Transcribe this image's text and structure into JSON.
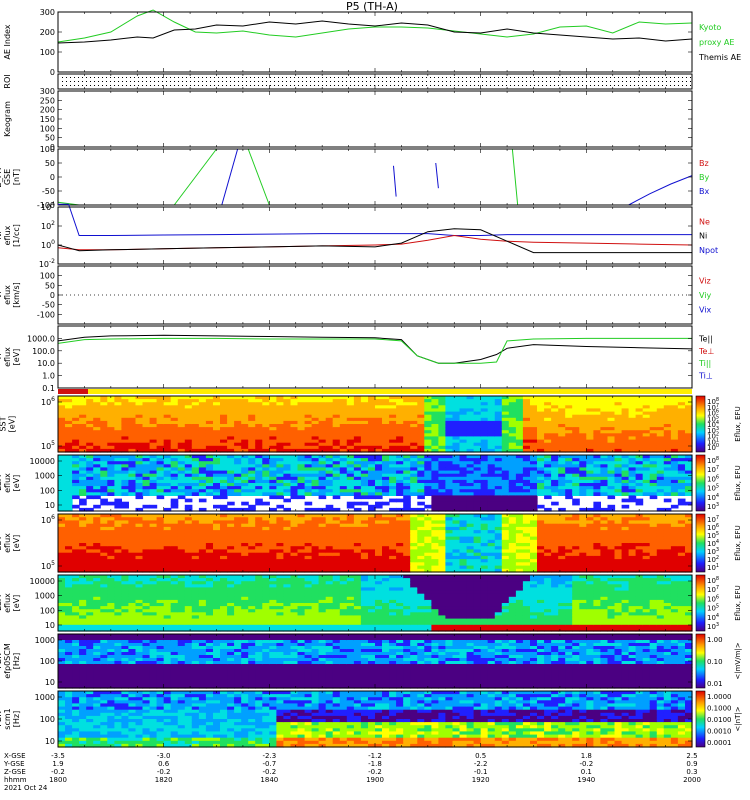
{
  "title": "P5 (TH-A)",
  "footer": {
    "row_labels": [
      "X-GSE",
      "Y-GSE",
      "Z-GSE",
      "hhmm"
    ],
    "date": "2021 Oct 24",
    "columns": [
      [
        "-3.5",
        "1.9",
        "-0.2",
        "1800"
      ],
      [
        "-3.0",
        "0.6",
        "-0.2",
        "1820"
      ],
      [
        "-2.3",
        "-0.7",
        "-0.2",
        "1840"
      ],
      [
        "-1.2",
        "-1.8",
        "-0.2",
        "1900"
      ],
      [
        "0.5",
        "-2.2",
        "-0.1",
        "1920"
      ],
      [
        "1.8",
        "-0.2",
        "0.1",
        "1940"
      ],
      [
        "2.5",
        "0.9",
        "0.3",
        "2000"
      ]
    ]
  },
  "colors": {
    "black": "#000000",
    "green": "#22cc22",
    "blue": "#1010d0",
    "red": "#d01010"
  },
  "chart_data": [
    {
      "type": "line",
      "ylabel": "AE Index",
      "ylim": [
        0,
        300
      ],
      "yticks": [
        "0",
        "100",
        "200",
        "300"
      ],
      "legend": [
        {
          "text": "Kyoto",
          "color": "#22cc22"
        },
        {
          "text": "proxy AE",
          "color": "#22cc22"
        },
        {
          "text": "Themis AE",
          "color": "#000000"
        }
      ],
      "x": [
        1800,
        1805,
        1810,
        1815,
        1818,
        1822,
        1826,
        1830,
        1835,
        1840,
        1845,
        1850,
        1855,
        1900,
        1905,
        1910,
        1915,
        1920,
        1925,
        1930,
        1935,
        1940,
        1945,
        1950,
        1955,
        2000
      ],
      "series": [
        {
          "name": "Kyoto proxy AE",
          "values": [
            150,
            170,
            200,
            280,
            310,
            250,
            200,
            195,
            205,
            185,
            175,
            195,
            215,
            225,
            225,
            220,
            205,
            190,
            175,
            190,
            225,
            230,
            195,
            250,
            240,
            245
          ]
        },
        {
          "name": "Themis AE",
          "values": [
            145,
            150,
            160,
            175,
            170,
            210,
            215,
            235,
            230,
            250,
            240,
            255,
            240,
            230,
            245,
            235,
            200,
            195,
            215,
            195,
            185,
            175,
            165,
            170,
            155,
            165
          ]
        }
      ]
    },
    {
      "type": "scatter",
      "ylabel": "ROI",
      "ylim": [
        0,
        1
      ]
    },
    {
      "type": "line",
      "ylabel": "Keogram",
      "ylim": [
        0,
        300
      ],
      "yticks": [
        "0",
        "50",
        "100",
        "150",
        "200",
        "250",
        "300"
      ]
    },
    {
      "type": "line",
      "ylabel": "B_FIT [nT]",
      "ylabel_lines": [
        "B_FIT",
        "GSE",
        "[nT]"
      ],
      "ylim": [
        -100,
        100
      ],
      "yticks": [
        "-100",
        "-50",
        "0",
        "50",
        "100"
      ],
      "legend": [
        {
          "text": "Bz",
          "color": "#d01010"
        },
        {
          "text": "By",
          "color": "#22cc22"
        },
        {
          "text": "Bx",
          "color": "#1010d0"
        }
      ],
      "segments": [
        {
          "color": "#22cc22",
          "x": [
            1800,
            1804
          ],
          "y": [
            -90,
            -115
          ]
        },
        {
          "color": "#22cc22",
          "x": [
            1822,
            1830
          ],
          "y": [
            -110,
            110
          ]
        },
        {
          "color": "#1010d0",
          "x": [
            1831,
            1834
          ],
          "y": [
            -110,
            110
          ]
        },
        {
          "color": "#22cc22",
          "x": [
            1836,
            1840
          ],
          "y": [
            110,
            -110
          ]
        },
        {
          "color": "#1010d0",
          "x": [
            1903.5,
            1904
          ],
          "y": [
            40,
            -70
          ]
        },
        {
          "color": "#1010d0",
          "x": [
            1911.5,
            1912
          ],
          "y": [
            50,
            -40
          ]
        },
        {
          "color": "#22cc22",
          "x": [
            1926,
            1927
          ],
          "y": [
            110,
            -110
          ]
        },
        {
          "color": "#1010d0",
          "x": [
            1948,
            1952,
            1956,
            2000
          ],
          "y": [
            -110,
            -60,
            -25,
            5
          ]
        }
      ]
    },
    {
      "type": "line",
      "ylabel": "Ni [1/cc]",
      "ylabel_lines": [
        "Ni",
        "eflux",
        "[1/cc]"
      ],
      "ylim": [
        -2,
        4
      ],
      "yscale": "log",
      "yticks": [
        "10^-2",
        "10^0",
        "10^2",
        "10^4"
      ],
      "legend": [
        {
          "text": "Ne",
          "color": "#d01010"
        },
        {
          "text": "Ni",
          "color": "#000000"
        },
        {
          "text": "Npot",
          "color": "#1010d0"
        }
      ],
      "x": [
        1800,
        1802,
        1804,
        1810,
        1820,
        1830,
        1840,
        1850,
        1900,
        1905,
        1910,
        1915,
        1920,
        1925,
        1930,
        1940,
        1950,
        2000
      ],
      "series": [
        {
          "name": "Npot",
          "values": [
            4.3,
            4.3,
            1.0,
            1.0,
            1.05,
            1.1,
            1.15,
            1.2,
            1.2,
            1.2,
            1.2,
            1.0,
            1.0,
            1.1,
            1.1,
            1.1,
            1.1,
            1.1
          ]
        },
        {
          "name": "Ne",
          "values": [
            -0.3,
            -0.4,
            -0.5,
            -0.5,
            -0.4,
            -0.3,
            -0.2,
            -0.1,
            0.0,
            0.1,
            0.5,
            1.0,
            0.6,
            0.4,
            0.3,
            0.2,
            0.1,
            0.0
          ]
        },
        {
          "name": "Ni",
          "values": [
            0.0,
            -0.3,
            -0.6,
            -0.5,
            -0.4,
            -0.3,
            -0.2,
            -0.1,
            -0.2,
            0.2,
            1.4,
            1.7,
            1.6,
            0.4,
            -0.8,
            -0.8,
            -0.8,
            -0.8
          ]
        }
      ]
    },
    {
      "type": "line",
      "ylabel": "Vi [km/s]",
      "ylabel_lines": [
        "Vi",
        "eflux",
        "[km/s]"
      ],
      "ylim": [
        -150,
        150
      ],
      "yticks": [
        "-100",
        "-50",
        "0",
        "50",
        "100"
      ],
      "legend": [
        {
          "text": "Viz",
          "color": "#d01010"
        },
        {
          "text": "Viy",
          "color": "#22cc22"
        },
        {
          "text": "Vix",
          "color": "#1010d0"
        }
      ]
    },
    {
      "type": "line",
      "ylabel": "Ti [eV]",
      "ylabel_lines": [
        "Ti",
        "eflux",
        "[eV]"
      ],
      "ylim": [
        -1,
        4
      ],
      "yscale": "log",
      "yticks": [
        "0.1",
        "1.0",
        "10.0",
        "100.0",
        "1000.0"
      ],
      "legend": [
        {
          "text": "Te||",
          "color": "#000000"
        },
        {
          "text": "Te⊥",
          "color": "#d01010"
        },
        {
          "text": "Ti||",
          "color": "#22cc22"
        },
        {
          "text": "Ti⊥",
          "color": "#1010d0"
        }
      ],
      "x": [
        1800,
        1805,
        1810,
        1820,
        1830,
        1840,
        1850,
        1900,
        1905,
        1908,
        1912,
        1915,
        1920,
        1923,
        1925,
        1930,
        1940,
        1950,
        2000
      ],
      "series": [
        {
          "name": "Te||",
          "values": [
            2.8,
            3.1,
            3.2,
            3.25,
            3.2,
            3.15,
            3.1,
            3.05,
            2.9,
            1.6,
            1.0,
            1.0,
            1.3,
            1.7,
            2.2,
            2.5,
            2.35,
            2.25,
            2.15
          ]
        },
        {
          "name": "Ti||",
          "values": [
            2.6,
            2.9,
            2.95,
            3.0,
            3.0,
            2.95,
            2.95,
            2.95,
            2.8,
            1.6,
            1.0,
            1.0,
            1.0,
            1.1,
            2.8,
            2.95,
            3.0,
            3.0,
            3.0
          ]
        }
      ]
    },
    {
      "type": "heatmap",
      "ylabel": "SST [eV]",
      "ylabel_lines": [
        "SST",
        "[eV]"
      ],
      "yticks": [
        "10^5",
        "10^6"
      ],
      "colorbar_label": "Eflux, EFU",
      "colorbar_ticks": [
        "10^8",
        "10^7",
        "10^6",
        "10^5",
        "10^4",
        "10^3",
        "10^2",
        "10^1",
        "10^0"
      ]
    },
    {
      "type": "heatmap",
      "ylabel": "ESA [eV]",
      "ylabel_lines": [
        "ESA",
        "eflux",
        "[eV]"
      ],
      "yticks": [
        "10",
        "100",
        "1000",
        "10000"
      ],
      "colorbar_label": "Eflux, EFU",
      "colorbar_ticks": [
        "10^8",
        "10^7",
        "10^6",
        "10^5",
        "10^4",
        "10^3"
      ]
    },
    {
      "type": "heatmap",
      "ylabel": "SST [eV]",
      "ylabel_lines": [
        "SST",
        "eflux",
        "[eV]"
      ],
      "yticks": [
        "10^5",
        "10^6"
      ],
      "colorbar_label": "Eflux, EFU",
      "colorbar_ticks": [
        "10^7",
        "10^6",
        "10^5",
        "10^4",
        "10^3",
        "10^2",
        "10^1"
      ]
    },
    {
      "type": "heatmap",
      "ylabel": "ESA [eV]",
      "ylabel_lines": [
        "ESA",
        "eflux",
        "[eV]"
      ],
      "yticks": [
        "10",
        "100",
        "1000",
        "10000"
      ],
      "colorbar_label": "Eflux, EFU",
      "colorbar_ticks": [
        "10^8",
        "10^7",
        "10^6",
        "10^5",
        "10^4",
        "10^3"
      ]
    },
    {
      "type": "heatmap",
      "ylabel": "FBK [Hz]",
      "ylabel_lines": [
        "FBK",
        "efp0SCM",
        "[Hz]"
      ],
      "yticks": [
        "10",
        "100",
        "1000"
      ],
      "colorbar_label": "<|mV/m|>",
      "colorbar_ticks": [
        "1.00",
        "0.10",
        "0.01"
      ]
    },
    {
      "type": "heatmap",
      "ylabel": "FBK [Hz]",
      "ylabel_lines": [
        "FBK",
        "scm1",
        "[Hz]"
      ],
      "yticks": [
        "10",
        "100",
        "1000"
      ],
      "colorbar_label": "<|nT|>",
      "colorbar_ticks": [
        "1.0000",
        "0.1000",
        "0.0100",
        "0.0010",
        "0.0001"
      ]
    }
  ]
}
